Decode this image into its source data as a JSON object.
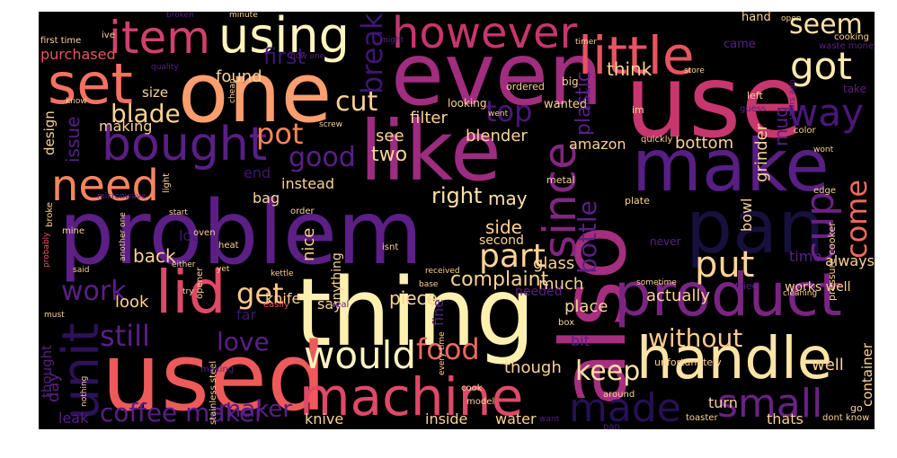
{
  "colors": {
    "background": "#000000",
    "page": "#ffffff"
  },
  "words": [
    {
      "text": "problem",
      "color": "#5b1f86"
    },
    {
      "text": "one",
      "color": "#fc9e6d"
    },
    {
      "text": "even",
      "color": "#a12d7e"
    },
    {
      "text": "use",
      "color": "#c7366e"
    },
    {
      "text": "thing",
      "color": "#fff0b0"
    },
    {
      "text": "used",
      "color": "#ee5a5a"
    },
    {
      "text": "also",
      "color": "#a52f7e"
    },
    {
      "text": "like",
      "color": "#9d2c80"
    },
    {
      "text": "make",
      "color": "#571f84"
    },
    {
      "text": "pan",
      "color": "#16103c"
    },
    {
      "text": "product",
      "color": "#7a2482"
    },
    {
      "text": "handle",
      "color": "#fde4a6"
    },
    {
      "text": "machine",
      "color": "#de4968"
    },
    {
      "text": "lid",
      "color": "#de4968"
    },
    {
      "text": "bought",
      "color": "#5a1f86"
    },
    {
      "text": "little",
      "color": "#e85362"
    },
    {
      "text": "however",
      "color": "#c5366d"
    },
    {
      "text": "using",
      "color": "#fff5be"
    },
    {
      "text": "item",
      "color": "#d0406c"
    },
    {
      "text": "set",
      "color": "#f47161"
    },
    {
      "text": "got",
      "color": "#feeab0"
    },
    {
      "text": "would",
      "color": "#fff4c0"
    },
    {
      "text": "need",
      "color": "#f8845f"
    },
    {
      "text": "since",
      "color": "#83267f"
    },
    {
      "text": "unit",
      "color": "#2c1258"
    },
    {
      "text": "small",
      "color": "#6a2185"
    },
    {
      "text": "made",
      "color": "#251152"
    },
    {
      "text": "cup",
      "color": "#6a2185"
    },
    {
      "text": "way",
      "color": "#4a1778"
    },
    {
      "text": "part",
      "color": "#fdd497"
    },
    {
      "text": "put",
      "color": "#fdd497"
    },
    {
      "text": "food",
      "color": "#f06860"
    },
    {
      "text": "work",
      "color": "#5a1f86"
    },
    {
      "text": "get",
      "color": "#fcc98c"
    },
    {
      "text": "still",
      "color": "#5a1f86"
    },
    {
      "text": "love",
      "color": "#5a1f86"
    },
    {
      "text": "coffee maker",
      "color": "#5a1f86"
    },
    {
      "text": "without",
      "color": "#fec890"
    },
    {
      "text": "come",
      "color": "#f06860"
    },
    {
      "text": "keep",
      "color": "#fde0a6"
    },
    {
      "text": "seem",
      "color": "#fde0a6"
    },
    {
      "text": "cut",
      "color": "#fcd294"
    },
    {
      "text": "good",
      "color": "#5a1f86"
    },
    {
      "text": "blade",
      "color": "#fcd294"
    },
    {
      "text": "pot",
      "color": "#f8845f"
    },
    {
      "text": "top",
      "color": "#4a1778"
    },
    {
      "text": "break",
      "color": "#3f1672"
    },
    {
      "text": "first",
      "color": "#3f1672"
    },
    {
      "text": "found",
      "color": "#fcd294"
    },
    {
      "text": "purchased",
      "color": "#e85362"
    },
    {
      "text": "making",
      "color": "#fcd294"
    },
    {
      "text": "issue",
      "color": "#5a1f86"
    },
    {
      "text": "size",
      "color": "#fcd294"
    },
    {
      "text": "design",
      "color": "#fcd294"
    },
    {
      "text": "think",
      "color": "#fcd294"
    },
    {
      "text": "filter",
      "color": "#fcd294"
    },
    {
      "text": "blender",
      "color": "#fcd294"
    },
    {
      "text": "two",
      "color": "#fcd294"
    },
    {
      "text": "see",
      "color": "#fcd294"
    },
    {
      "text": "right",
      "color": "#fde0a6"
    },
    {
      "text": "may",
      "color": "#fde0a6"
    },
    {
      "text": "bottle",
      "color": "#5a1f86"
    },
    {
      "text": "plastic",
      "color": "#5a1f86"
    },
    {
      "text": "amazon",
      "color": "#fcd294"
    },
    {
      "text": "bottom",
      "color": "#fcd294"
    },
    {
      "text": "bowl",
      "color": "#fcd294"
    },
    {
      "text": "grinder",
      "color": "#fcd294"
    },
    {
      "text": "mug",
      "color": "#5a1f86"
    },
    {
      "text": "side",
      "color": "#fcd294"
    },
    {
      "text": "second",
      "color": "#fcd294"
    },
    {
      "text": "much",
      "color": "#fcd294"
    },
    {
      "text": "glass",
      "color": "#fcd294"
    },
    {
      "text": "back",
      "color": "#fcd294"
    },
    {
      "text": "nice",
      "color": "#fcd294"
    },
    {
      "text": "complaint",
      "color": "#fcd294"
    },
    {
      "text": "piece",
      "color": "#fcd294"
    },
    {
      "text": "actually",
      "color": "#fcd294"
    },
    {
      "text": "always",
      "color": "#fcd294"
    },
    {
      "text": "time",
      "color": "#5a1f86"
    },
    {
      "text": "works well",
      "color": "#fcd294"
    },
    {
      "text": "look",
      "color": "#fcd294"
    },
    {
      "text": "knife",
      "color": "#fcd294"
    },
    {
      "text": "place",
      "color": "#fcd294"
    },
    {
      "text": "well",
      "color": "#fcd294"
    },
    {
      "text": "though",
      "color": "#fcd294"
    },
    {
      "text": "container",
      "color": "#fcd294"
    },
    {
      "text": "day",
      "color": "#5a1f86"
    },
    {
      "text": "thought",
      "color": "#5a1f86"
    },
    {
      "text": "maker",
      "color": "#5a1f86"
    },
    {
      "text": "knive",
      "color": "#fcd294"
    },
    {
      "text": "inside",
      "color": "#fcd294"
    },
    {
      "text": "water",
      "color": "#fcd294"
    },
    {
      "text": "turn",
      "color": "#fcd294"
    },
    {
      "text": "thats",
      "color": "#fcd294"
    },
    {
      "text": "leak",
      "color": "#5a1f86"
    },
    {
      "text": "fine",
      "color": "#5a1f86"
    },
    {
      "text": "bit",
      "color": "#5a1f86"
    },
    {
      "text": "say",
      "color": "#fcd294"
    },
    {
      "text": "anything",
      "color": "#fcd294"
    },
    {
      "text": "instead",
      "color": "#fcd294"
    },
    {
      "text": "bag",
      "color": "#fcd294"
    },
    {
      "text": "lot",
      "color": "#3f1672"
    },
    {
      "text": "end",
      "color": "#3f1672"
    },
    {
      "text": "hand",
      "color": "#fcd294"
    },
    {
      "text": "came",
      "color": "#5a1f86"
    },
    {
      "text": "cooking",
      "color": "#fcd294"
    },
    {
      "text": "waste money",
      "color": "#5a1f86"
    },
    {
      "text": "timer",
      "color": "#fcd294"
    },
    {
      "text": "open",
      "color": "#fcd294"
    },
    {
      "text": "first time",
      "color": "#fcd294"
    },
    {
      "text": "ive",
      "color": "#fcd294"
    },
    {
      "text": "minute",
      "color": "#fcd294"
    },
    {
      "text": "broken",
      "color": "#5a1f86"
    },
    {
      "text": "might",
      "color": "#5a1f86"
    },
    {
      "text": "quality",
      "color": "#5a1f86"
    },
    {
      "text": "cheap",
      "color": "#fcd294"
    },
    {
      "text": "screw",
      "color": "#fcd294"
    },
    {
      "text": "ordered",
      "color": "#fcd294"
    },
    {
      "text": "big",
      "color": "#fcd294"
    },
    {
      "text": "looking",
      "color": "#fcd294"
    },
    {
      "text": "wanted",
      "color": "#fcd294"
    },
    {
      "text": "went",
      "color": "#fcd294"
    },
    {
      "text": "know",
      "color": "#fcd294"
    },
    {
      "text": "im",
      "color": "#fcd294"
    },
    {
      "text": "left",
      "color": "#fcd294"
    },
    {
      "text": "take",
      "color": "#5a1f86"
    },
    {
      "text": "guess",
      "color": "#5a1f86"
    },
    {
      "text": "color",
      "color": "#fcd294"
    },
    {
      "text": "quickly",
      "color": "#fcd294"
    },
    {
      "text": "wont",
      "color": "#fcd294"
    },
    {
      "text": "edge",
      "color": "#fcd294"
    },
    {
      "text": "plate",
      "color": "#fcd294"
    },
    {
      "text": "metal",
      "color": "#fcd294"
    },
    {
      "text": "pressure cooker",
      "color": "#fcd294"
    },
    {
      "text": "light",
      "color": "#fcd294"
    },
    {
      "text": "micronwave",
      "color": "#5a1f86"
    },
    {
      "text": "broke",
      "color": "#fcd294"
    },
    {
      "text": "start",
      "color": "#fcd294"
    },
    {
      "text": "order",
      "color": "#fcd294"
    },
    {
      "text": "mine",
      "color": "#fcd294"
    },
    {
      "text": "another one",
      "color": "#fcd294"
    },
    {
      "text": "oven",
      "color": "#fcd294"
    },
    {
      "text": "heat",
      "color": "#fcd294"
    },
    {
      "text": "isnt",
      "color": "#fcd294"
    },
    {
      "text": "never",
      "color": "#5a1f86"
    },
    {
      "text": "probably",
      "color": "#e85362"
    },
    {
      "text": "said",
      "color": "#fcd294"
    },
    {
      "text": "either",
      "color": "#fcd294"
    },
    {
      "text": "opener",
      "color": "#fcd294"
    },
    {
      "text": "yet",
      "color": "#fcd294"
    },
    {
      "text": "kettle",
      "color": "#fcd294"
    },
    {
      "text": "received",
      "color": "#fcd294"
    },
    {
      "text": "base",
      "color": "#fcd294"
    },
    {
      "text": "sometime",
      "color": "#fcd294"
    },
    {
      "text": "tried",
      "color": "#5a1f86"
    },
    {
      "text": "cleaning",
      "color": "#fcd294"
    },
    {
      "text": "try",
      "color": "#fcd294"
    },
    {
      "text": "easily",
      "color": "#e85362"
    },
    {
      "text": "needed",
      "color": "#5a1f86"
    },
    {
      "text": "must",
      "color": "#fcd294"
    },
    {
      "text": "stainless steel",
      "color": "#fcd294"
    },
    {
      "text": "nothing",
      "color": "#fcd294"
    },
    {
      "text": "making",
      "color": "#5a1f86"
    },
    {
      "text": "seal",
      "color": "#5a1f86"
    },
    {
      "text": "far",
      "color": "#3f1672"
    },
    {
      "text": "every time",
      "color": "#fcd294"
    },
    {
      "text": "cook",
      "color": "#fcd294"
    },
    {
      "text": "model",
      "color": "#fcd294"
    },
    {
      "text": "box",
      "color": "#fcd294"
    },
    {
      "text": "want",
      "color": "#5a1f86"
    },
    {
      "text": "unfortunately",
      "color": "#fcd294"
    },
    {
      "text": "around",
      "color": "#fcd294"
    },
    {
      "text": "toaster",
      "color": "#fcd294"
    },
    {
      "text": "dont know",
      "color": "#fcd294"
    },
    {
      "text": "go",
      "color": "#fcd294"
    },
    {
      "text": "pan",
      "color": "#5a1f86"
    },
    {
      "text": "store",
      "color": "#fcd294"
    },
    {
      "text": "drink",
      "color": "#5a1f86"
    },
    {
      "text": "years ago",
      "color": "#5a1f86"
    },
    {
      "text": "now one",
      "color": "#5a1f86"
    }
  ]
}
